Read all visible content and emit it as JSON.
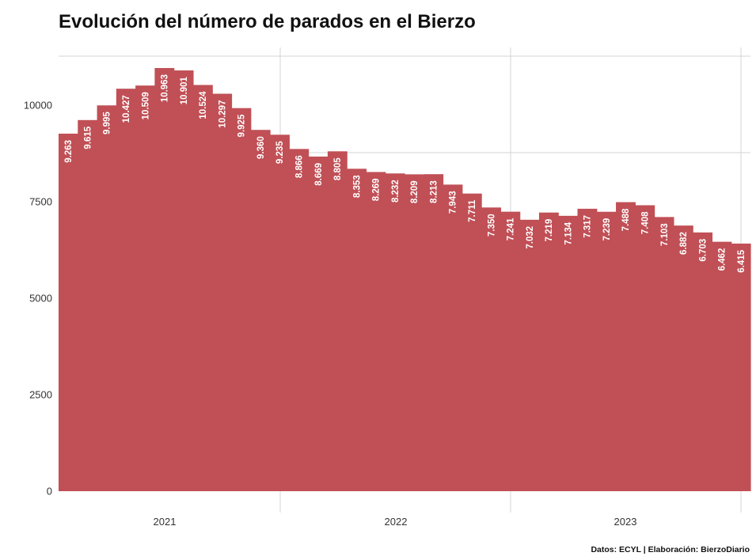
{
  "title": "Evolución del número de parados en el Bierzo",
  "footer": "Datos: ECYL | Elaboración: BierzoDiario",
  "colors": {
    "bar": "#c05056",
    "grid": "#d4d4d4",
    "text": "#333333"
  },
  "chart_data": {
    "type": "bar",
    "title": "Evolución del número de parados en el Bierzo",
    "xlabel": "",
    "ylabel": "",
    "ylim": [
      0,
      11300
    ],
    "yticks": [
      0,
      2500,
      5000,
      7500,
      10000
    ],
    "xtick_labels": [
      "2021",
      "2022",
      "2023"
    ],
    "grid": true,
    "values": [
      9263,
      9615,
      9995,
      10427,
      10509,
      10963,
      10901,
      10524,
      10297,
      9925,
      9360,
      9235,
      8866,
      8669,
      8805,
      8353,
      8269,
      8232,
      8209,
      8213,
      7943,
      7711,
      7350,
      7241,
      7032,
      7219,
      7134,
      7317,
      7239,
      7488,
      7408,
      7103,
      6882,
      6703,
      6462,
      6415
    ],
    "data_labels": [
      "9.263",
      "9.615",
      "9.995",
      "10.427",
      "10.509",
      "10.963",
      "10.901",
      "10.524",
      "10.297",
      "9.925",
      "9.360",
      "9.235",
      "8.866",
      "8.669",
      "8.805",
      "8.353",
      "8.269",
      "8.232",
      "8.209",
      "8.213",
      "7.943",
      "7.711",
      "7.350",
      "7.241",
      "7.032",
      "7.219",
      "7.134",
      "7.317",
      "7.239",
      "7.488",
      "7.408",
      "7.103",
      "6.882",
      "6.703",
      "6.462",
      "6.415"
    ]
  }
}
